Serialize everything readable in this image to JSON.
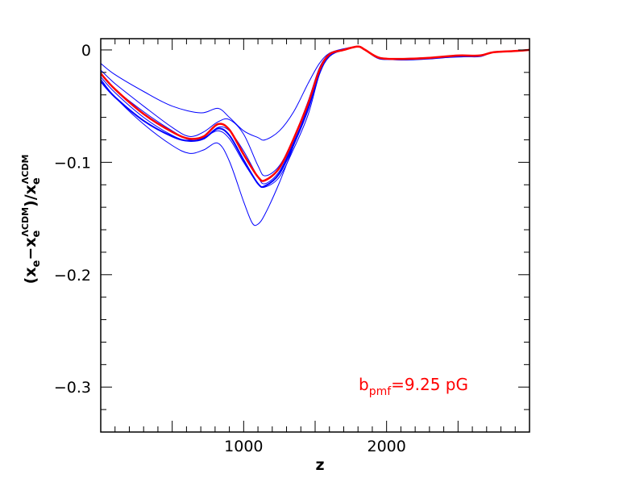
{
  "chart_data": {
    "type": "line",
    "xlabel": "z",
    "ylabel": "(x_e − x_e^ΛCDM)/x_e^ΛCDM",
    "ylabel_parts": {
      "open": "(x",
      "sub1": "e",
      "minus": "−x",
      "sub2": "e",
      "sup2": "ΛCDM",
      "close": ")/x",
      "sub3": "e",
      "sup3": "ΛCDM"
    },
    "xlim": [
      0,
      3000
    ],
    "ylim": [
      -0.34,
      0.01
    ],
    "x_ticks": [
      1000,
      2000
    ],
    "x_tick_labels": [
      "1000",
      "2000"
    ],
    "y_ticks": [
      0,
      -0.1,
      -0.2,
      -0.3
    ],
    "y_tick_labels": [
      "0",
      "−0.1",
      "−0.2",
      "−0.3"
    ],
    "annotation": {
      "prefix": "b",
      "subscript": "pmf",
      "suffix": "=9.25  pG",
      "color": "#ff0000"
    },
    "colors": {
      "samples": "#0000ff",
      "mean": "#ff0000"
    },
    "series": [
      {
        "color": "#0000ff",
        "width": 1,
        "points": [
          [
            0,
            -0.012
          ],
          [
            100,
            -0.022
          ],
          [
            300,
            -0.037
          ],
          [
            500,
            -0.05
          ],
          [
            700,
            -0.056
          ],
          [
            820,
            -0.052
          ],
          [
            900,
            -0.06
          ],
          [
            1000,
            -0.072
          ],
          [
            1100,
            -0.078
          ],
          [
            1150,
            -0.08
          ],
          [
            1250,
            -0.072
          ],
          [
            1350,
            -0.055
          ],
          [
            1450,
            -0.03
          ],
          [
            1530,
            -0.012
          ],
          [
            1600,
            -0.003
          ],
          [
            1700,
            0.001
          ],
          [
            1800,
            0.003
          ],
          [
            1850,
            0.0
          ],
          [
            1950,
            -0.007
          ],
          [
            2100,
            -0.008
          ],
          [
            2300,
            -0.007
          ],
          [
            2500,
            -0.006
          ],
          [
            2650,
            -0.005
          ],
          [
            2750,
            -0.002
          ],
          [
            2900,
            -0.001
          ],
          [
            3000,
            0.0
          ]
        ]
      },
      {
        "color": "#0000ff",
        "width": 1,
        "points": [
          [
            0,
            -0.018
          ],
          [
            100,
            -0.03
          ],
          [
            300,
            -0.05
          ],
          [
            500,
            -0.069
          ],
          [
            620,
            -0.077
          ],
          [
            720,
            -0.073
          ],
          [
            820,
            -0.064
          ],
          [
            900,
            -0.062
          ],
          [
            1000,
            -0.075
          ],
          [
            1100,
            -0.103
          ],
          [
            1150,
            -0.112
          ],
          [
            1250,
            -0.103
          ],
          [
            1350,
            -0.078
          ],
          [
            1450,
            -0.046
          ],
          [
            1530,
            -0.016
          ],
          [
            1600,
            -0.004
          ],
          [
            1700,
            0.0
          ],
          [
            1800,
            0.003
          ],
          [
            1850,
            0.0
          ],
          [
            1950,
            -0.007
          ],
          [
            2100,
            -0.008
          ],
          [
            2300,
            -0.007
          ],
          [
            2500,
            -0.005
          ],
          [
            2650,
            -0.005
          ],
          [
            2750,
            -0.002
          ],
          [
            2900,
            -0.001
          ],
          [
            3000,
            0.0
          ]
        ]
      },
      {
        "color": "#0000ff",
        "width": 1,
        "points": [
          [
            0,
            -0.022
          ],
          [
            100,
            -0.035
          ],
          [
            300,
            -0.055
          ],
          [
            500,
            -0.072
          ],
          [
            620,
            -0.08
          ],
          [
            720,
            -0.079
          ],
          [
            820,
            -0.069
          ],
          [
            900,
            -0.072
          ],
          [
            1000,
            -0.09
          ],
          [
            1100,
            -0.113
          ],
          [
            1150,
            -0.119
          ],
          [
            1250,
            -0.108
          ],
          [
            1350,
            -0.082
          ],
          [
            1450,
            -0.052
          ],
          [
            1530,
            -0.02
          ],
          [
            1600,
            -0.005
          ],
          [
            1700,
            0.0
          ],
          [
            1800,
            0.003
          ],
          [
            1850,
            0.0
          ],
          [
            1950,
            -0.007
          ],
          [
            2100,
            -0.009
          ],
          [
            2300,
            -0.008
          ],
          [
            2500,
            -0.006
          ],
          [
            2650,
            -0.006
          ],
          [
            2750,
            -0.002
          ],
          [
            2900,
            -0.001
          ],
          [
            3000,
            0.0
          ]
        ]
      },
      {
        "color": "#0000ff",
        "width": 1,
        "points": [
          [
            0,
            -0.024
          ],
          [
            100,
            -0.038
          ],
          [
            300,
            -0.06
          ],
          [
            500,
            -0.076
          ],
          [
            620,
            -0.081
          ],
          [
            720,
            -0.078
          ],
          [
            820,
            -0.072
          ],
          [
            900,
            -0.079
          ],
          [
            1000,
            -0.1
          ],
          [
            1100,
            -0.119
          ],
          [
            1150,
            -0.122
          ],
          [
            1250,
            -0.113
          ],
          [
            1350,
            -0.088
          ],
          [
            1450,
            -0.058
          ],
          [
            1530,
            -0.022
          ],
          [
            1600,
            -0.006
          ],
          [
            1700,
            0.0
          ],
          [
            1800,
            0.003
          ],
          [
            1850,
            0.0
          ],
          [
            1950,
            -0.008
          ],
          [
            2100,
            -0.008
          ],
          [
            2300,
            -0.007
          ],
          [
            2500,
            -0.006
          ],
          [
            2650,
            -0.005
          ],
          [
            2750,
            -0.002
          ],
          [
            2900,
            -0.001
          ],
          [
            3000,
            0.0
          ]
        ]
      },
      {
        "color": "#0000ff",
        "width": 1,
        "points": [
          [
            0,
            -0.026
          ],
          [
            100,
            -0.042
          ],
          [
            300,
            -0.066
          ],
          [
            500,
            -0.085
          ],
          [
            620,
            -0.092
          ],
          [
            720,
            -0.089
          ],
          [
            820,
            -0.083
          ],
          [
            900,
            -0.099
          ],
          [
            1000,
            -0.135
          ],
          [
            1060,
            -0.154
          ],
          [
            1100,
            -0.155
          ],
          [
            1150,
            -0.146
          ],
          [
            1250,
            -0.118
          ],
          [
            1350,
            -0.085
          ],
          [
            1450,
            -0.05
          ],
          [
            1530,
            -0.019
          ],
          [
            1600,
            -0.005
          ],
          [
            1700,
            0.0
          ],
          [
            1800,
            0.003
          ],
          [
            1850,
            0.0
          ],
          [
            1950,
            -0.007
          ],
          [
            2100,
            -0.008
          ],
          [
            2300,
            -0.007
          ],
          [
            2500,
            -0.006
          ],
          [
            2650,
            -0.005
          ],
          [
            2750,
            -0.002
          ],
          [
            2900,
            -0.001
          ],
          [
            3000,
            0.0
          ]
        ]
      },
      {
        "color": "#0000ff",
        "width": 2,
        "points": [
          [
            0,
            -0.028
          ],
          [
            100,
            -0.042
          ],
          [
            300,
            -0.063
          ],
          [
            500,
            -0.077
          ],
          [
            620,
            -0.081
          ],
          [
            720,
            -0.079
          ],
          [
            820,
            -0.07
          ],
          [
            900,
            -0.076
          ],
          [
            1000,
            -0.098
          ],
          [
            1100,
            -0.119
          ],
          [
            1150,
            -0.121
          ],
          [
            1250,
            -0.11
          ],
          [
            1350,
            -0.084
          ],
          [
            1450,
            -0.053
          ],
          [
            1530,
            -0.02
          ],
          [
            1600,
            -0.005
          ],
          [
            1700,
            0.0
          ],
          [
            1800,
            0.003
          ],
          [
            1850,
            0.0
          ],
          [
            1950,
            -0.007
          ],
          [
            2100,
            -0.008
          ],
          [
            2300,
            -0.007
          ],
          [
            2500,
            -0.006
          ],
          [
            2650,
            -0.005
          ],
          [
            2750,
            -0.002
          ],
          [
            2900,
            -0.001
          ],
          [
            3000,
            0.0
          ]
        ]
      },
      {
        "color": "#ff0000",
        "width": 2.5,
        "points": [
          [
            0,
            -0.021
          ],
          [
            100,
            -0.035
          ],
          [
            300,
            -0.057
          ],
          [
            500,
            -0.073
          ],
          [
            620,
            -0.079
          ],
          [
            720,
            -0.077
          ],
          [
            820,
            -0.066
          ],
          [
            900,
            -0.071
          ],
          [
            1000,
            -0.093
          ],
          [
            1100,
            -0.113
          ],
          [
            1150,
            -0.116
          ],
          [
            1250,
            -0.105
          ],
          [
            1350,
            -0.079
          ],
          [
            1450,
            -0.048
          ],
          [
            1530,
            -0.018
          ],
          [
            1600,
            -0.004
          ],
          [
            1700,
            0.0
          ],
          [
            1800,
            0.003
          ],
          [
            1850,
            0.0
          ],
          [
            1950,
            -0.007
          ],
          [
            2100,
            -0.008
          ],
          [
            2300,
            -0.007
          ],
          [
            2500,
            -0.005
          ],
          [
            2650,
            -0.005
          ],
          [
            2750,
            -0.002
          ],
          [
            2900,
            -0.001
          ],
          [
            3000,
            0.0
          ]
        ]
      }
    ]
  }
}
